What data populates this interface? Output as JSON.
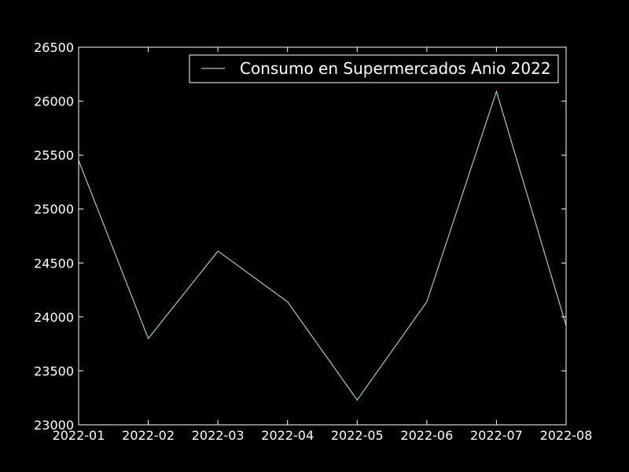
{
  "chart_data": {
    "type": "line",
    "title": "",
    "xlabel": "",
    "ylabel": "",
    "categories": [
      "2022-01",
      "2022-02",
      "2022-03",
      "2022-04",
      "2022-05",
      "2022-06",
      "2022-07",
      "2022-08"
    ],
    "series": [
      {
        "name": "Consumo en Supermercados Anio 2022",
        "color": "#8dd3c7",
        "values": [
          25450,
          23800,
          24610,
          24140,
          23230,
          24140,
          26090,
          23920
        ]
      }
    ],
    "ylim": [
      23000,
      26500
    ],
    "yticks": [
      23000,
      23500,
      24000,
      24500,
      25000,
      25500,
      26000,
      26500
    ],
    "grid": false,
    "legend_position": "top-right",
    "colors": {
      "background": "#000000",
      "axes": "#ffffff",
      "text": "#ffffff"
    }
  }
}
